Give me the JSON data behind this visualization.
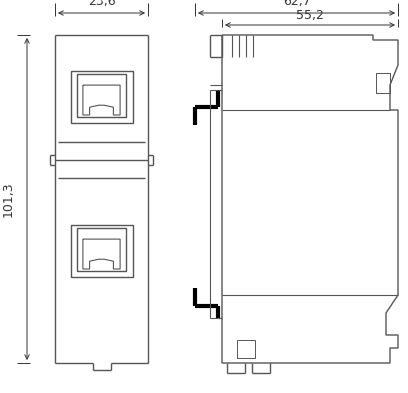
{
  "bg_color": "#ffffff",
  "line_color": "#555555",
  "dim_color": "#333333",
  "black_color": "#000000",
  "gray_color": "#888888",
  "dim_23_6": "23,6",
  "dim_101_3": "101,3",
  "dim_62_7": "62,7",
  "dim_55_2": "55,2",
  "fig_width": 4.08,
  "fig_height": 3.93,
  "dpi": 100
}
